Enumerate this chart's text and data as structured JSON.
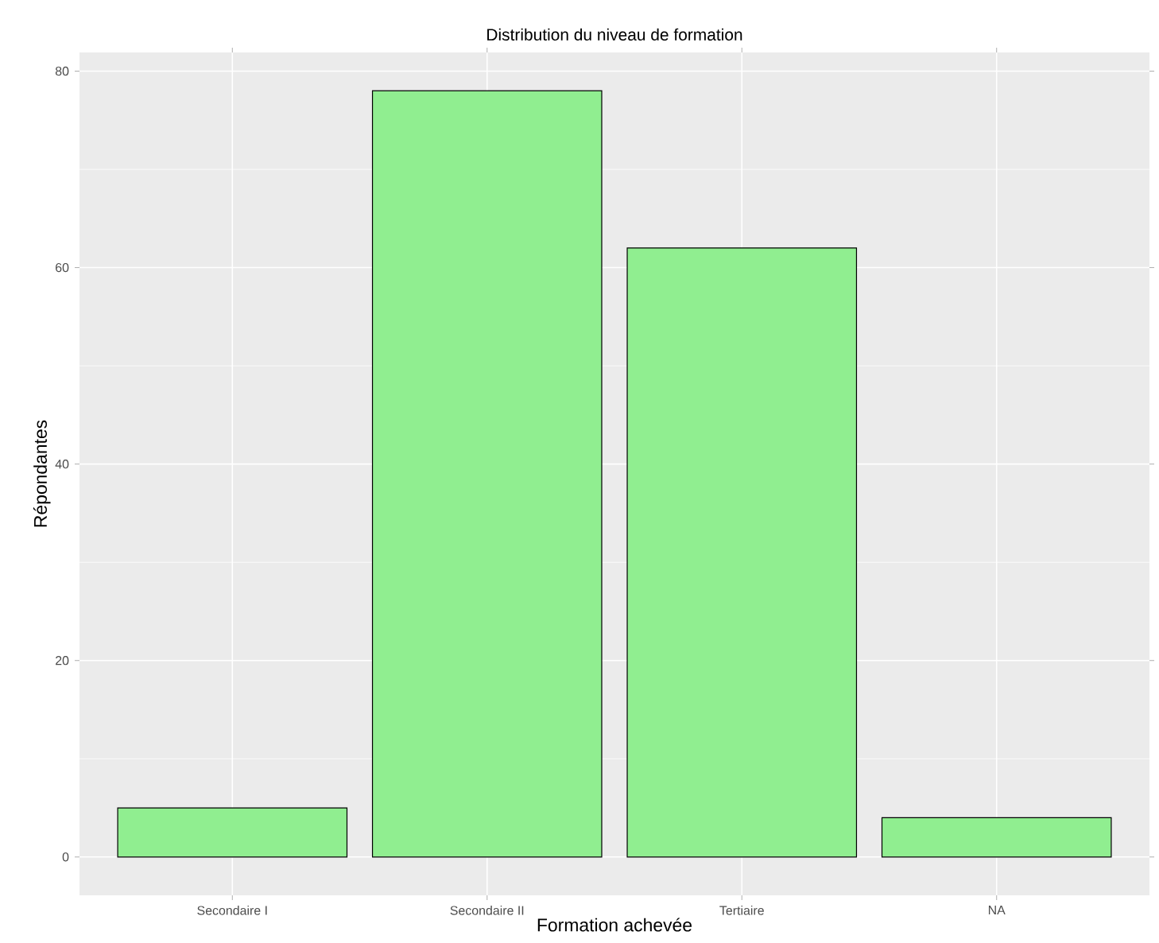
{
  "chart_data": {
    "type": "bar",
    "title": "Distribution du niveau de formation",
    "xlabel": "Formation achevée",
    "ylabel": "Répondantes",
    "categories": [
      "Secondaire I",
      "Secondaire II",
      "Tertiaire",
      "NA"
    ],
    "values": [
      5,
      78,
      62,
      4
    ],
    "color": "#90ee90",
    "ylim": [
      -3.9,
      81.9
    ],
    "yticks": [
      0,
      20,
      40,
      60,
      80
    ],
    "grid": true
  }
}
